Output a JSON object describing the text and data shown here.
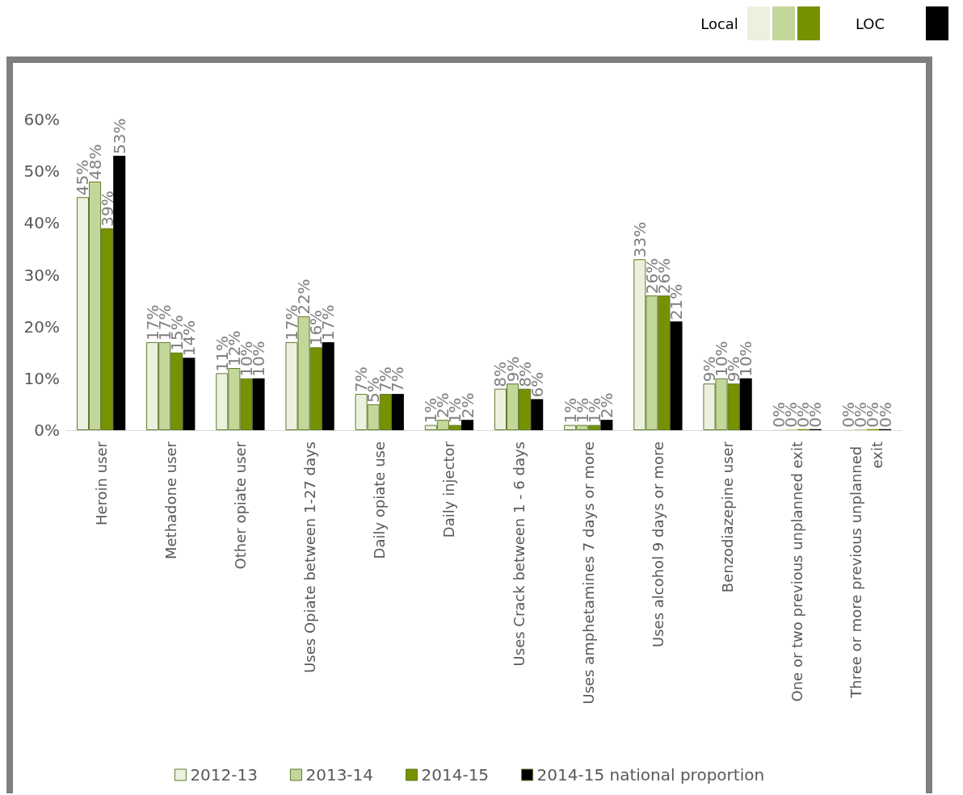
{
  "chart_data": {
    "type": "bar",
    "categories": [
      "Heroin user",
      "Methadone user",
      "Other opiate user",
      "Uses Opiate between 1-27 days",
      "Daily opiate use",
      "Daily injector",
      "Uses Crack between 1 - 6 days",
      "Uses amphetamines 7 days or more",
      "Uses alcohol 9 days or more",
      "Benzodiazepine user",
      "One or two previous unplanned exit",
      "Three or more previous unplanned exit"
    ],
    "series": [
      {
        "name": "2012-13",
        "color": "#ebf1de",
        "values": [
          45,
          17,
          11,
          17,
          7,
          1,
          8,
          1,
          33,
          9,
          0.2,
          0.2
        ],
        "value_labels": [
          "45%",
          "17%",
          "11%",
          "17%",
          "7%",
          "1%",
          "8%",
          "1%",
          "33%",
          "9%",
          "0%",
          "0%"
        ]
      },
      {
        "name": "2013-14",
        "color": "#c4d79b",
        "values": [
          48,
          17,
          12,
          22,
          5,
          2,
          9,
          1,
          26,
          10,
          0.2,
          0.2
        ],
        "value_labels": [
          "48%",
          "17%",
          "12%",
          "22%",
          "5%",
          "2%",
          "9%",
          "1%",
          "26%",
          "10%",
          "0%",
          "0%"
        ]
      },
      {
        "name": "2014-15",
        "color": "#769200",
        "values": [
          39,
          15,
          10,
          16,
          7,
          1,
          8,
          1,
          26,
          9,
          0.2,
          0.2
        ],
        "value_labels": [
          "39%",
          "15%",
          "10%",
          "16%",
          "7%",
          "1%",
          "8%",
          "1%",
          "26%",
          "9%",
          "0%",
          "0%"
        ]
      },
      {
        "name": "2014-15 national proportion",
        "color": "#000000",
        "values": [
          53,
          14,
          10,
          17,
          7,
          2,
          6,
          2,
          21,
          10,
          0.2,
          0.2
        ],
        "value_labels": [
          "53%",
          "14%",
          "10%",
          "17%",
          "7%",
          "2%",
          "6%",
          "2%",
          "21%",
          "10%",
          "0%",
          "0%"
        ]
      }
    ],
    "ylim": [
      0,
      60
    ],
    "yticks": [
      {
        "value": 0,
        "label": "0%"
      },
      {
        "value": 10,
        "label": "10%"
      },
      {
        "value": 20,
        "label": "20%"
      },
      {
        "value": 30,
        "label": "30%"
      },
      {
        "value": 40,
        "label": "40%"
      },
      {
        "value": 50,
        "label": "50%"
      },
      {
        "value": 60,
        "label": "60%"
      }
    ],
    "grid": false,
    "legend": "bottom",
    "annotations": [
      "Local",
      "LOC"
    ]
  }
}
